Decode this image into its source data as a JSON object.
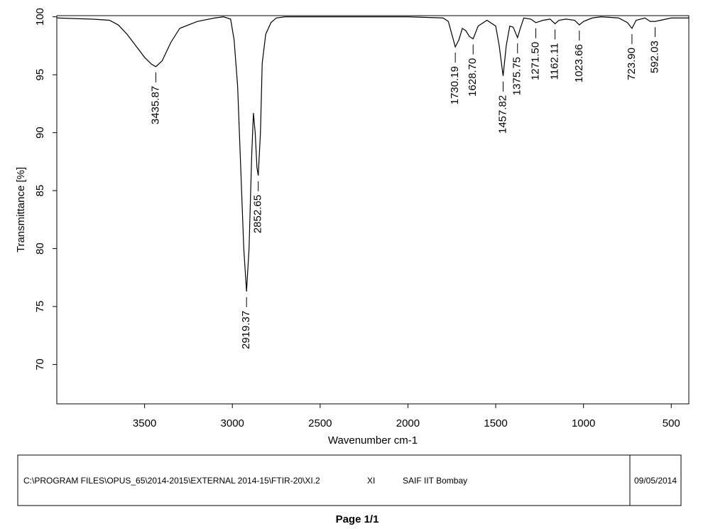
{
  "chart_data": {
    "type": "line",
    "x_label": "Wavenumber cm-1",
    "y_label": "Transmittance [%]",
    "color": "#000000",
    "xlim": [
      4000,
      400
    ],
    "ylim": [
      66.6,
      100.1
    ],
    "xticks": [
      3500,
      3000,
      2500,
      2000,
      1500,
      1000,
      500
    ],
    "yticks": [
      70,
      75,
      80,
      85,
      90,
      95,
      100
    ],
    "x": [
      4000,
      3800,
      3700,
      3650,
      3600,
      3550,
      3500,
      3460,
      3435.87,
      3400,
      3350,
      3300,
      3200,
      3100,
      3050,
      3010,
      2990,
      2970,
      2950,
      2935,
      2919.37,
      2905,
      2890,
      2880,
      2870,
      2860,
      2852.65,
      2840,
      2830,
      2810,
      2780,
      2750,
      2700,
      2000,
      1800,
      1770,
      1750,
      1730.19,
      1710,
      1690,
      1670,
      1650,
      1628.7,
      1600,
      1550,
      1500,
      1480,
      1457.82,
      1440,
      1420,
      1400,
      1375.75,
      1360,
      1340,
      1300,
      1271.5,
      1230,
      1190,
      1162.11,
      1140,
      1100,
      1050,
      1023.66,
      1000,
      950,
      900,
      800,
      750,
      723.9,
      700,
      650,
      620,
      592.03,
      560,
      500,
      400
    ],
    "values": [
      99.9,
      99.8,
      99.7,
      99.3,
      98.5,
      97.5,
      96.5,
      95.9,
      95.7,
      96.2,
      97.8,
      99.0,
      99.6,
      99.9,
      100,
      99.8,
      98,
      94,
      86,
      80,
      76.3,
      80,
      88,
      91.7,
      90,
      87,
      86.3,
      90,
      96,
      98.5,
      99.5,
      99.9,
      100,
      100,
      99.9,
      99.6,
      98.5,
      97.4,
      98,
      99.0,
      98.8,
      98.3,
      98.1,
      99.2,
      99.7,
      99.2,
      97.5,
      94.9,
      97.5,
      99.2,
      99.1,
      98.2,
      99.0,
      99.9,
      99.8,
      99.5,
      99.7,
      99.8,
      99.4,
      99.7,
      99.8,
      99.7,
      99.3,
      99.6,
      99.9,
      100,
      99.9,
      99.5,
      99.0,
      99.7,
      99.9,
      99.6,
      99.6,
      99.7,
      99.9,
      99.9
    ],
    "annotations": [
      {
        "label": "3435.87",
        "x": 3435.87,
        "y": 95.7
      },
      {
        "label": "2919.37",
        "x": 2919.37,
        "y": 76.3
      },
      {
        "label": "2852.65",
        "x": 2852.65,
        "y": 86.3
      },
      {
        "label": "1730.19",
        "x": 1730.19,
        "y": 97.4
      },
      {
        "label": "1628.70",
        "x": 1628.7,
        "y": 98.1
      },
      {
        "label": "1457.82",
        "x": 1457.82,
        "y": 94.9
      },
      {
        "label": "1375.75",
        "x": 1375.75,
        "y": 98.2
      },
      {
        "label": "1271.50",
        "x": 1271.5,
        "y": 99.5
      },
      {
        "label": "1162.11",
        "x": 1162.11,
        "y": 99.4
      },
      {
        "label": "1023.66",
        "x": 1023.66,
        "y": 99.3
      },
      {
        "label": "723.90",
        "x": 723.9,
        "y": 99.0
      },
      {
        "label": "592.03",
        "x": 592.03,
        "y": 99.6
      }
    ]
  },
  "footer": {
    "path": "C:\\PROGRAM FILES\\OPUS_65\\2014-2015\\EXTERNAL 2014-15\\FTIR-20\\XI.2",
    "sample": "XI",
    "lab": "SAIF IIT Bombay",
    "date": "09/05/2014",
    "page": "Page 1/1"
  }
}
